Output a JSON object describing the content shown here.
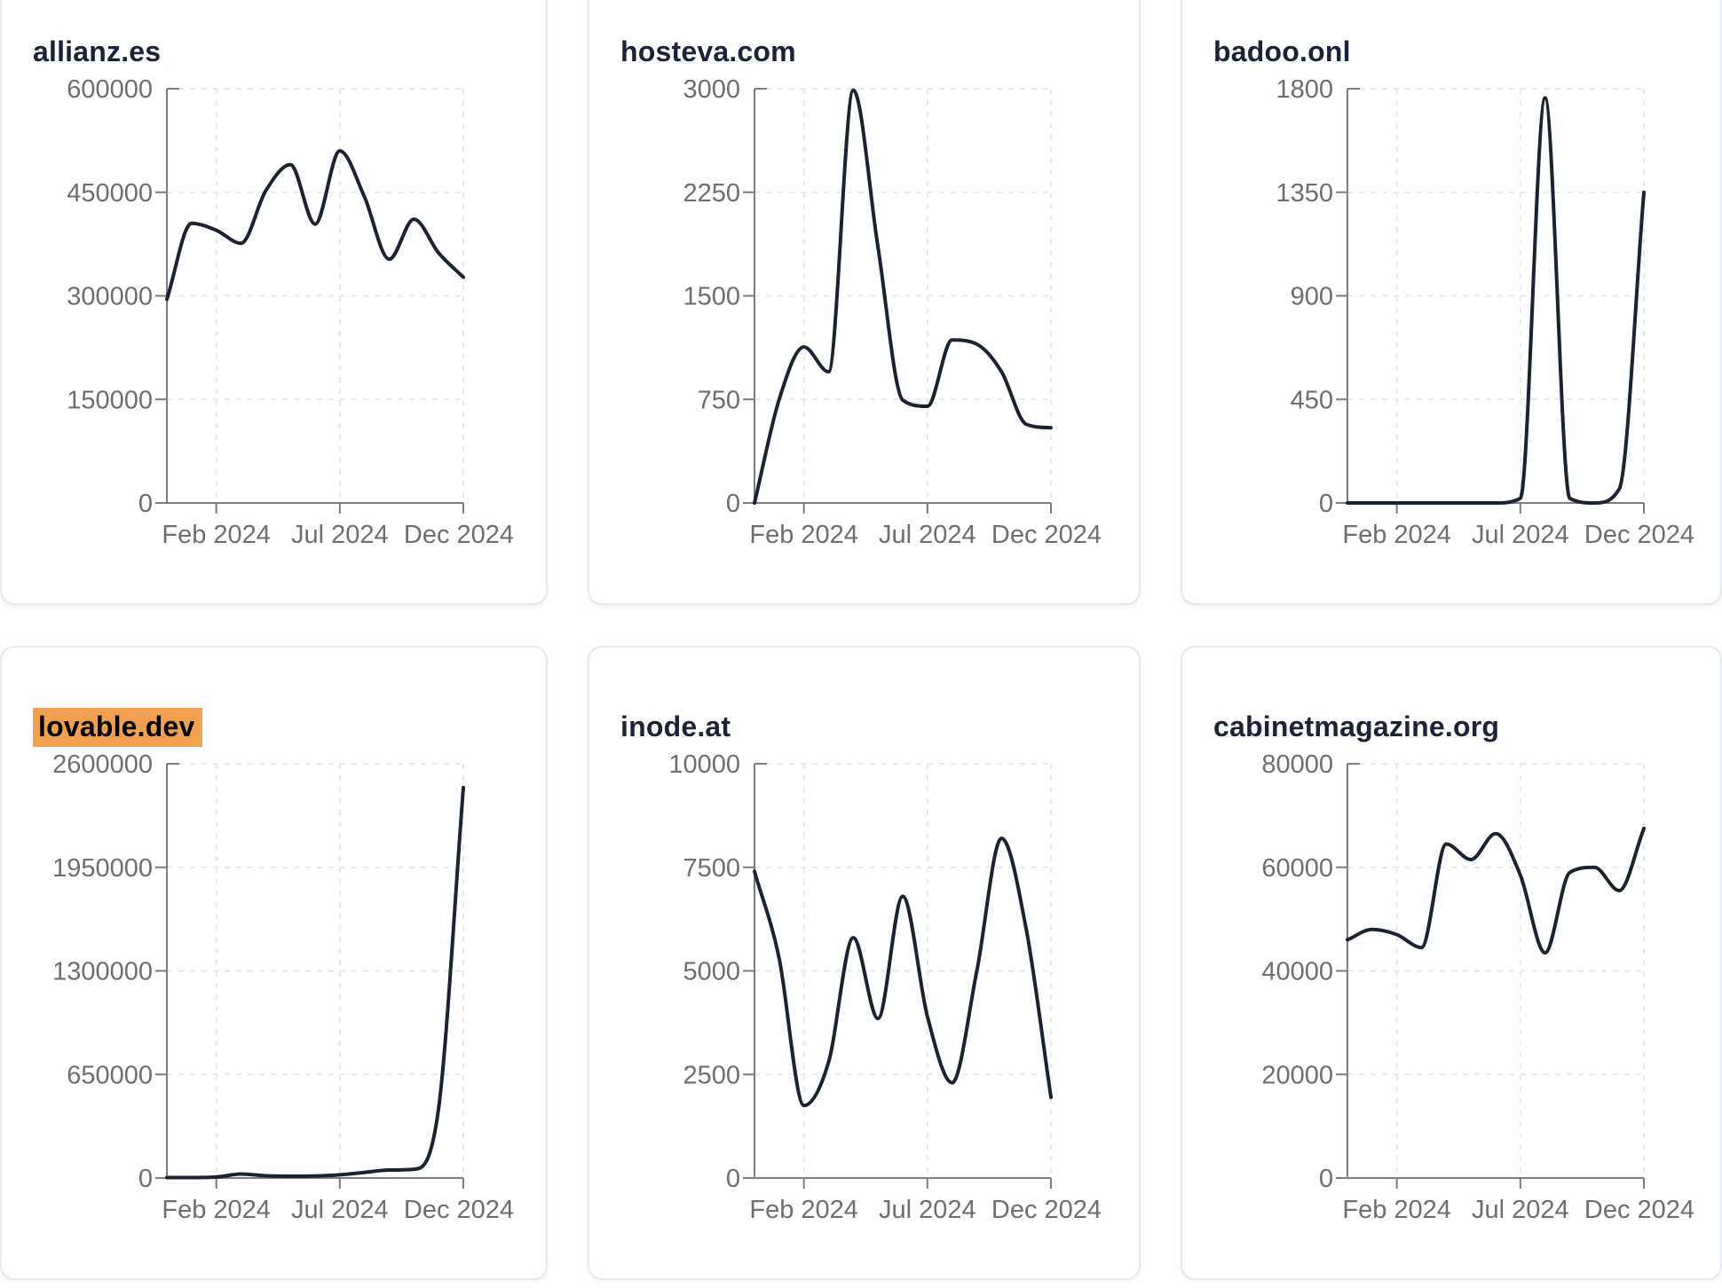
{
  "page": {
    "background": "#ffffff",
    "months": [
      "Dec 2023",
      "Jan 2024",
      "Feb 2024",
      "Mar 2024",
      "Apr 2024",
      "May 2024",
      "Jun 2024",
      "Jul 2024",
      "Aug 2024",
      "Sep 2024",
      "Oct 2024",
      "Nov 2024",
      "Dec 2024"
    ],
    "x_tick_labels": [
      "Feb 2024",
      "Jul 2024",
      "Dec 2024"
    ],
    "x_tick_month_indexes": [
      2,
      7,
      12
    ]
  },
  "colors": {
    "line": "#1b2233",
    "title": "#1a2338",
    "highlight": "#f0a050",
    "highlight_text": "#000000",
    "tick_label": "#6e6e6e",
    "axis": "#7d7d7d",
    "grid": "#e9e9e9",
    "card_border": "#e6e9f0",
    "card_background": "#ffffff"
  },
  "chart_data": [
    {
      "type": "line",
      "title": "allianz.es",
      "highlighted": false,
      "x": [
        "Dec 2023",
        "Jan 2024",
        "Feb 2024",
        "Mar 2024",
        "Apr 2024",
        "May 2024",
        "Jun 2024",
        "Jul 2024",
        "Aug 2024",
        "Sep 2024",
        "Oct 2024",
        "Nov 2024",
        "Dec 2024"
      ],
      "values": [
        295000,
        405000,
        395000,
        376000,
        452000,
        490000,
        404000,
        510000,
        443000,
        353000,
        411000,
        362000,
        327000
      ],
      "ylim": [
        0,
        600000
      ],
      "y_tick_labels": [
        "0",
        "150000",
        "300000",
        "450000",
        "600000"
      ],
      "x_tick_labels": [
        "Feb 2024",
        "Jul 2024",
        "Dec 2024"
      ],
      "grid": true,
      "legend": "none"
    },
    {
      "type": "line",
      "title": "hosteva.com",
      "highlighted": false,
      "x": [
        "Dec 2023",
        "Jan 2024",
        "Feb 2024",
        "Mar 2024",
        "Apr 2024",
        "May 2024",
        "Jun 2024",
        "Jul 2024",
        "Aug 2024",
        "Sep 2024",
        "Oct 2024",
        "Nov 2024",
        "Dec 2024"
      ],
      "values": [
        0,
        750,
        1130,
        950,
        2990,
        1850,
        745,
        700,
        1180,
        1150,
        950,
        570,
        545
      ],
      "ylim": [
        0,
        3000
      ],
      "y_tick_labels": [
        "0",
        "750",
        "1500",
        "2250",
        "3000"
      ],
      "x_tick_labels": [
        "Feb 2024",
        "Jul 2024",
        "Dec 2024"
      ],
      "grid": true,
      "legend": "none"
    },
    {
      "type": "line",
      "title": "badoo.onl",
      "highlighted": false,
      "x": [
        "Dec 2023",
        "Jan 2024",
        "Feb 2024",
        "Mar 2024",
        "Apr 2024",
        "May 2024",
        "Jun 2024",
        "Jul 2024",
        "Aug 2024",
        "Sep 2024",
        "Oct 2024",
        "Nov 2024",
        "Dec 2024"
      ],
      "values": [
        0,
        0,
        0,
        0,
        0,
        0,
        0,
        20,
        1760,
        20,
        0,
        60,
        1350
      ],
      "ylim": [
        0,
        1800
      ],
      "y_tick_labels": [
        "0",
        "450",
        "900",
        "1350",
        "1800"
      ],
      "x_tick_labels": [
        "Feb 2024",
        "Jul 2024",
        "Dec 2024"
      ],
      "grid": true,
      "legend": "none"
    },
    {
      "type": "line",
      "title": "lovable.dev",
      "highlighted": true,
      "x": [
        "Dec 2023",
        "Jan 2024",
        "Feb 2024",
        "Mar 2024",
        "Apr 2024",
        "May 2024",
        "Jun 2024",
        "Jul 2024",
        "Aug 2024",
        "Sep 2024",
        "Oct 2024",
        "Nov 2024",
        "Dec 2024"
      ],
      "values": [
        3000,
        3000,
        6000,
        25000,
        14000,
        11000,
        13000,
        20000,
        35000,
        50000,
        55000,
        440000,
        2450000
      ],
      "ylim": [
        0,
        2600000
      ],
      "y_tick_labels": [
        "0",
        "650000",
        "1300000",
        "1950000",
        "2600000"
      ],
      "x_tick_labels": [
        "Feb 2024",
        "Jul 2024",
        "Dec 2024"
      ],
      "grid": true,
      "legend": "none"
    },
    {
      "type": "line",
      "title": "inode.at",
      "highlighted": false,
      "x": [
        "Dec 2023",
        "Jan 2024",
        "Feb 2024",
        "Mar 2024",
        "Apr 2024",
        "May 2024",
        "Jun 2024",
        "Jul 2024",
        "Aug 2024",
        "Sep 2024",
        "Oct 2024",
        "Nov 2024",
        "Dec 2024"
      ],
      "values": [
        7400,
        5300,
        1750,
        2800,
        5800,
        3850,
        6800,
        3900,
        2300,
        5000,
        8200,
        6000,
        1950
      ],
      "ylim": [
        0,
        10000
      ],
      "y_tick_labels": [
        "0",
        "2500",
        "5000",
        "7500",
        "10000"
      ],
      "x_tick_labels": [
        "Feb 2024",
        "Jul 2024",
        "Dec 2024"
      ],
      "grid": true,
      "legend": "none"
    },
    {
      "type": "line",
      "title": "cabinetmagazine.org",
      "highlighted": false,
      "x": [
        "Dec 2023",
        "Jan 2024",
        "Feb 2024",
        "Mar 2024",
        "Apr 2024",
        "May 2024",
        "Jun 2024",
        "Jul 2024",
        "Aug 2024",
        "Sep 2024",
        "Oct 2024",
        "Nov 2024",
        "Dec 2024"
      ],
      "values": [
        46000,
        48000,
        47000,
        44500,
        64500,
        61500,
        66500,
        58500,
        43500,
        59000,
        60000,
        55500,
        67500
      ],
      "ylim": [
        0,
        80000
      ],
      "y_tick_labels": [
        "0",
        "20000",
        "40000",
        "60000",
        "80000"
      ],
      "x_tick_labels": [
        "Feb 2024",
        "Jul 2024",
        "Dec 2024"
      ],
      "grid": true,
      "legend": "none"
    }
  ]
}
